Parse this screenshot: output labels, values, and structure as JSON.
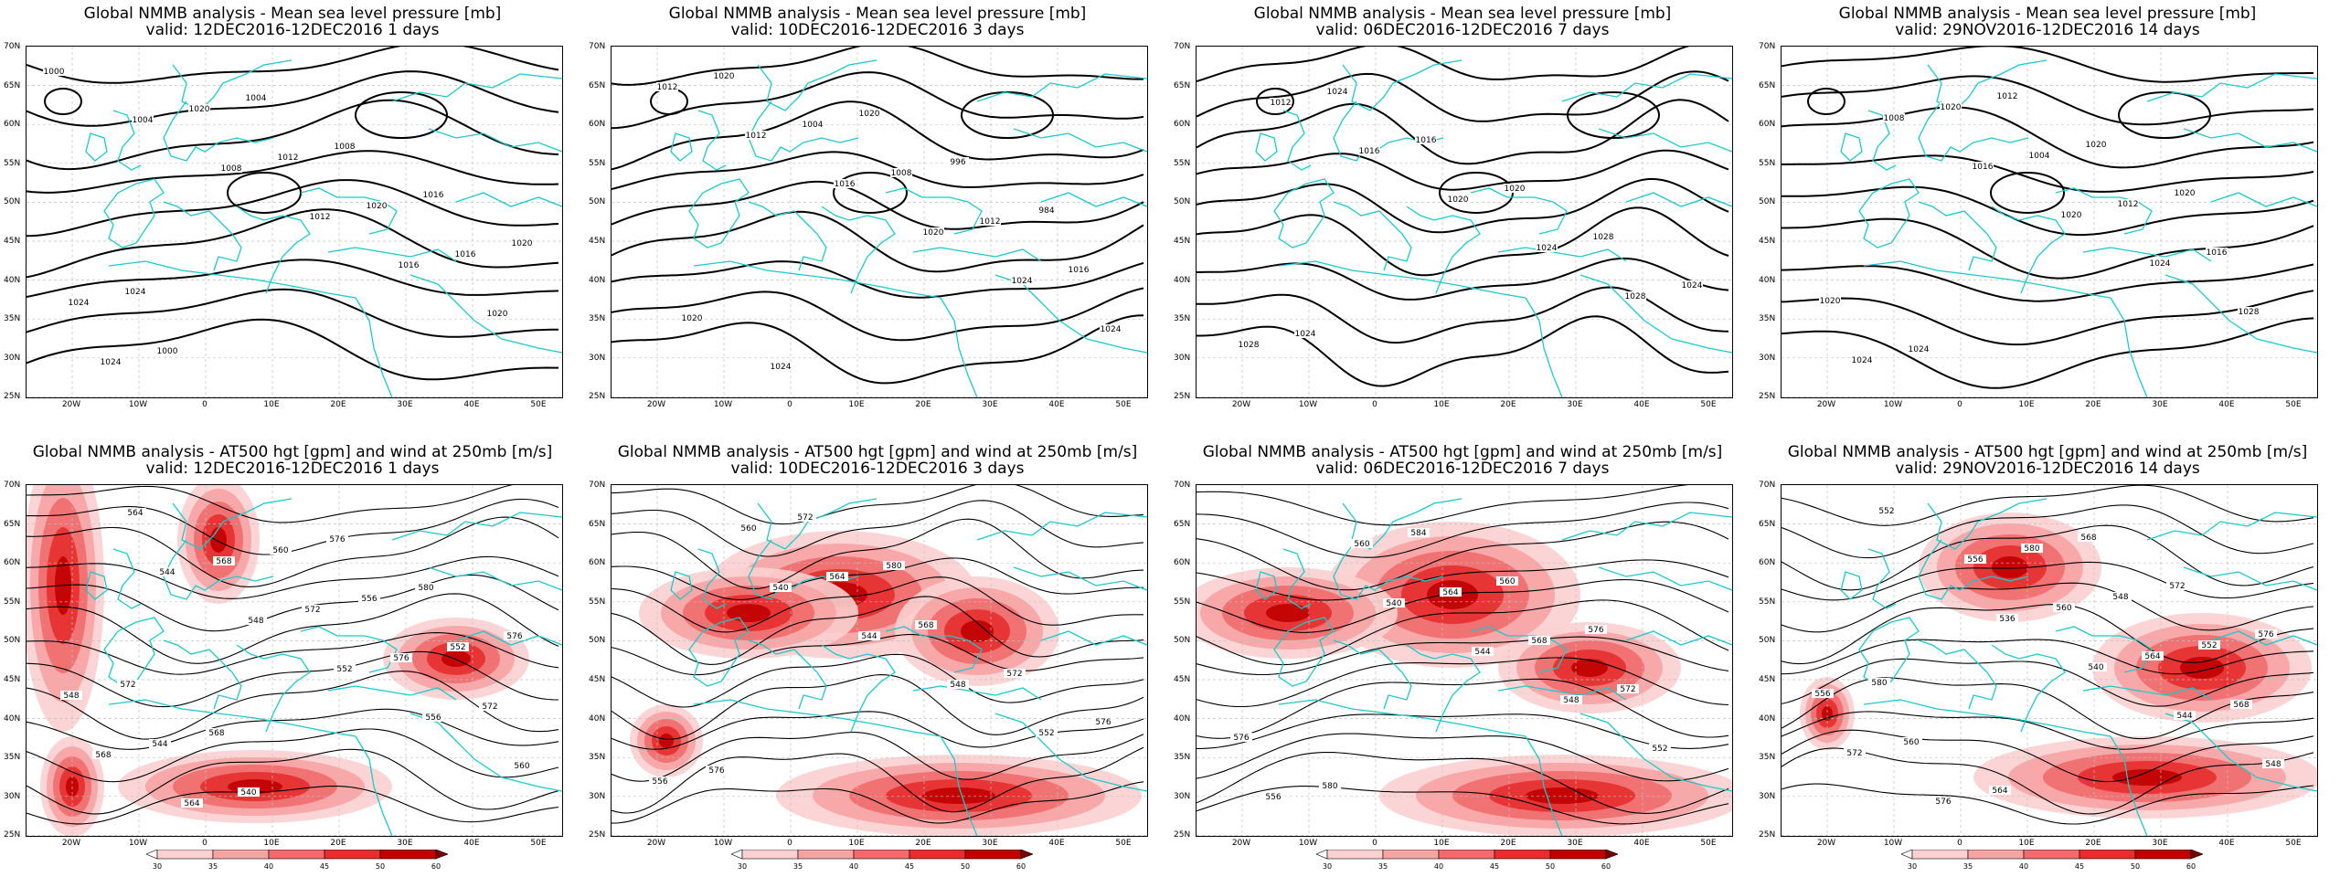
{
  "panels": [
    {
      "line1": "Global NMMB analysis - Mean sea level pressure [mb]",
      "line2": "valid: 12DEC2016-12DEC2016   1 days",
      "kind": "mslp",
      "labels": [
        "1000",
        "1004",
        "1008",
        "1012",
        "1016",
        "1020",
        "1024",
        "1020",
        "1012",
        "1020",
        "1016",
        "1024",
        "1000",
        "1004",
        "1008",
        "1016",
        "1020",
        "1024"
      ]
    },
    {
      "line1": "Global NMMB analysis - Mean sea level pressure [mb]",
      "line2": "valid: 10DEC2016-12DEC2016   3 days",
      "kind": "mslp",
      "labels": [
        "1012",
        "1012",
        "1016",
        "1020",
        "1024",
        "1024",
        "1020",
        "1004",
        "1008",
        "1012",
        "1016",
        "1020",
        "1024",
        "1020",
        "996",
        "984"
      ]
    },
    {
      "line1": "Global NMMB analysis - Mean sea level pressure [mb]",
      "line2": "valid: 06DEC2016-12DEC2016   7 days",
      "kind": "mslp",
      "labels": [
        "1012",
        "1016",
        "1020",
        "1024",
        "1028",
        "1028",
        "1024",
        "1016",
        "1020",
        "1028",
        "1024",
        "1024"
      ]
    },
    {
      "line1": "Global NMMB analysis - Mean sea level pressure [mb]",
      "line2": "valid: 29NOV2016-12DEC2016   14 days",
      "kind": "mslp",
      "labels": [
        "1008",
        "1016",
        "1020",
        "1024",
        "1028",
        "1024",
        "1020",
        "1004",
        "1012",
        "1016",
        "1020",
        "1024",
        "1012",
        "1020",
        "1020"
      ]
    },
    {
      "line1": "Global NMMB analysis - AT500 hgt [gpm] and wind at 250mb [m/s]",
      "line2": "valid: 12DEC2016-12DEC2016   1 days",
      "kind": "z500",
      "labels": [
        "544",
        "548",
        "552",
        "556",
        "560",
        "564",
        "568",
        "572",
        "576",
        "572",
        "568",
        "564",
        "560",
        "556",
        "552",
        "548",
        "544",
        "540",
        "576",
        "580",
        "576",
        "572",
        "568"
      ]
    },
    {
      "line1": "Global NMMB analysis - AT500 hgt [gpm] and wind at 250mb [m/s]",
      "line2": "valid: 10DEC2016-12DEC2016   3 days",
      "kind": "z500",
      "labels": [
        "540",
        "544",
        "548",
        "552",
        "556",
        "560",
        "564",
        "568",
        "572",
        "576",
        "576",
        "572",
        "580"
      ]
    },
    {
      "line1": "Global NMMB analysis - AT500 hgt [gpm] and wind at 250mb [m/s]",
      "line2": "valid: 06DEC2016-12DEC2016   7 days",
      "kind": "z500",
      "labels": [
        "540",
        "544",
        "548",
        "552",
        "556",
        "560",
        "564",
        "568",
        "572",
        "576",
        "580",
        "584",
        "560",
        "576"
      ]
    },
    {
      "line1": "Global NMMB analysis - AT500 hgt [gpm] and wind at 250mb [m/s]",
      "line2": "valid: 29NOV2016-12DEC2016   14 days",
      "kind": "z500",
      "labels": [
        "536",
        "540",
        "544",
        "548",
        "552",
        "556",
        "560",
        "564",
        "568",
        "572",
        "576",
        "580",
        "548",
        "552",
        "556",
        "560",
        "564",
        "568",
        "572",
        "576",
        "580"
      ]
    }
  ],
  "lat_ticks": [
    "70N",
    "65N",
    "60N",
    "55N",
    "50N",
    "45N",
    "40N",
    "35N",
    "30N",
    "25N"
  ],
  "lon_ticks": [
    "20W",
    "10W",
    "0",
    "10E",
    "20E",
    "30E",
    "40E",
    "50E"
  ],
  "colorbar": {
    "ticks": [
      "30",
      "35",
      "40",
      "45",
      "50",
      "60"
    ],
    "colors": [
      "#ffffff",
      "#fbd0d0",
      "#f7a3a3",
      "#f06b6b",
      "#e52f2f",
      "#c00000",
      "#7a0000"
    ]
  },
  "colors": {
    "contour": "#000000",
    "coast": "#1cc9c9",
    "grid": "#bfbfbf"
  }
}
